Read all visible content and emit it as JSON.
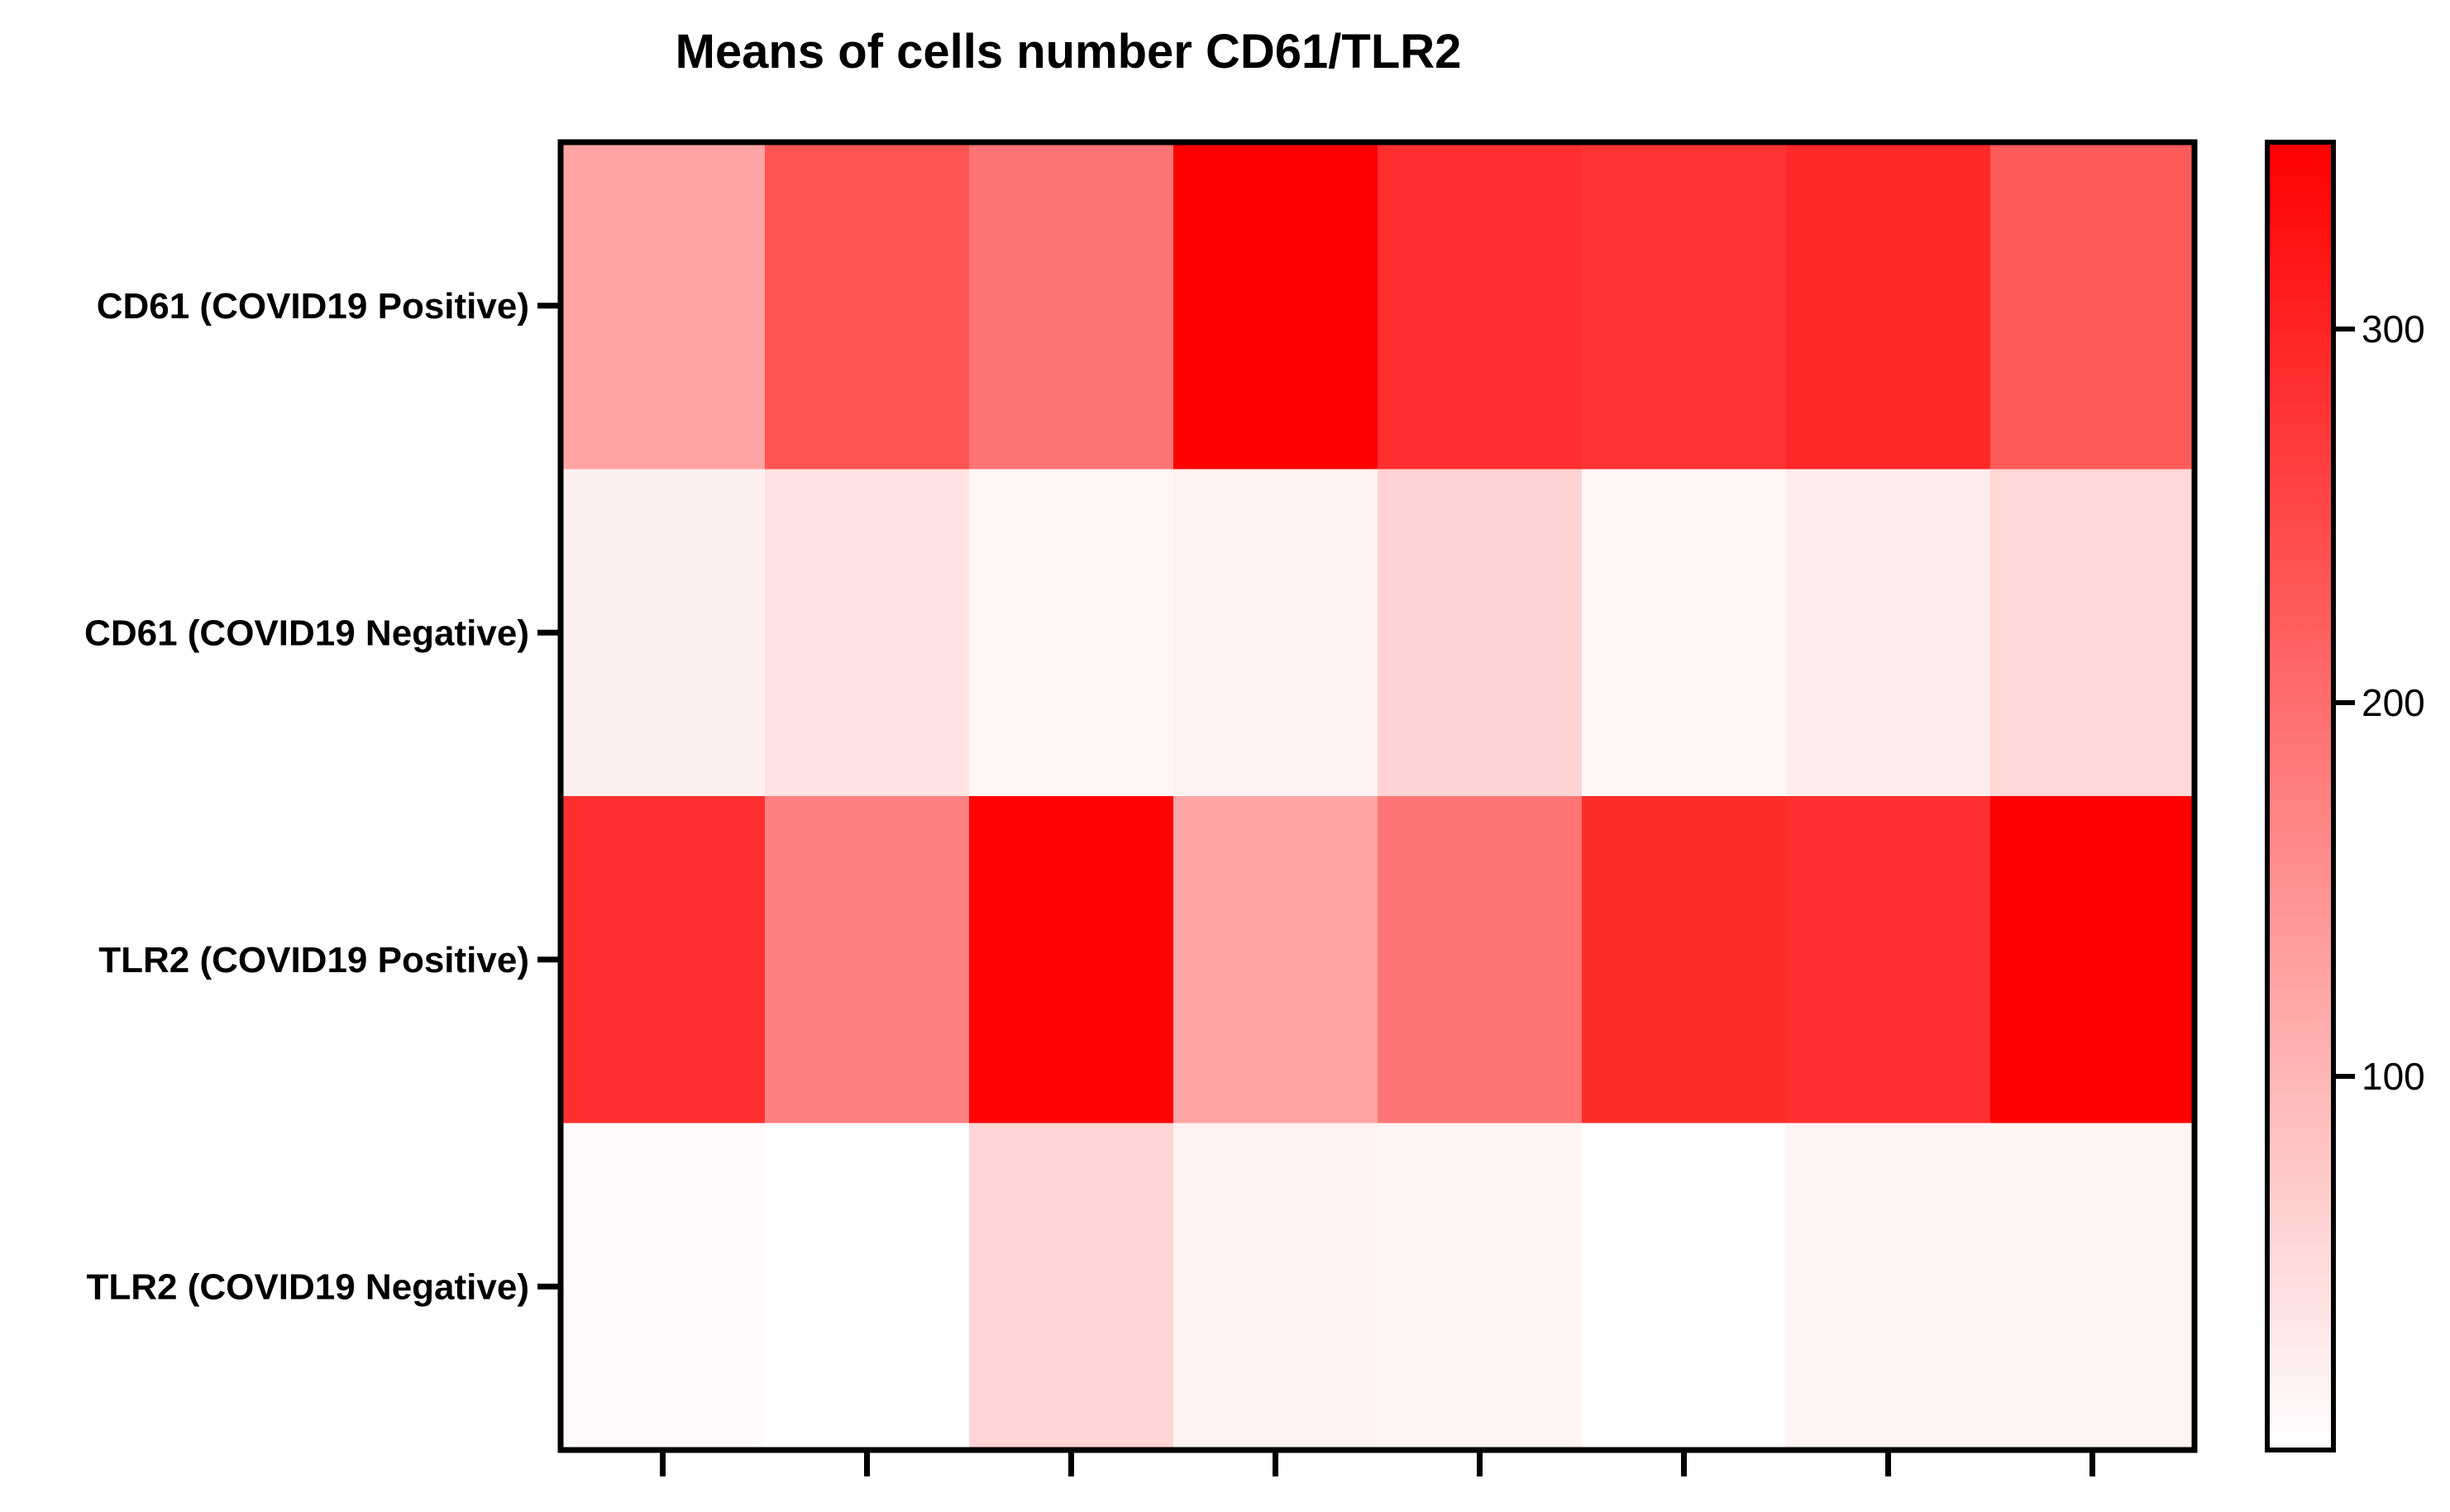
{
  "chart_data": {
    "type": "heatmap",
    "title": "Means of cells number CD61/TLR2",
    "xlabel": "",
    "ylabel": "",
    "rows": [
      "CD61 (COVID19 Positive)",
      "CD61 (COVID19 Negative)",
      "TLR2 (COVID19 Positive)",
      "TLR2 (COVID19 Negative)"
    ],
    "columns_count": 8,
    "values": [
      [
        125,
        235,
        190,
        348,
        285,
        280,
        295,
        225
      ],
      [
        20,
        40,
        12,
        18,
        60,
        12,
        25,
        55
      ],
      [
        285,
        175,
        345,
        125,
        190,
        290,
        285,
        348
      ],
      [
        5,
        0,
        58,
        18,
        15,
        3,
        15,
        15
      ]
    ],
    "colorbar": {
      "min": 0,
      "max": 350,
      "ticks": [
        100,
        200,
        300
      ],
      "tick_labels": [
        "100",
        "200",
        "300"
      ],
      "color_low": "#ffffff",
      "color_high": "#ff0000"
    }
  }
}
